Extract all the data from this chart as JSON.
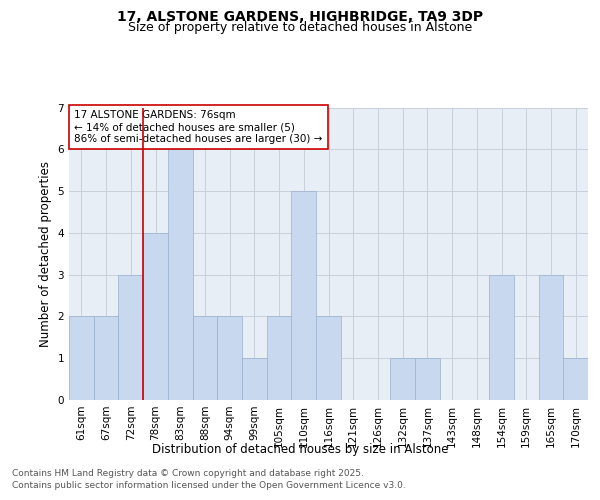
{
  "title_line1": "17, ALSTONE GARDENS, HIGHBRIDGE, TA9 3DP",
  "title_line2": "Size of property relative to detached houses in Alstone",
  "xlabel": "Distribution of detached houses by size in Alstone",
  "ylabel": "Number of detached properties",
  "categories": [
    "61sqm",
    "67sqm",
    "72sqm",
    "78sqm",
    "83sqm",
    "88sqm",
    "94sqm",
    "99sqm",
    "105sqm",
    "110sqm",
    "116sqm",
    "121sqm",
    "126sqm",
    "132sqm",
    "137sqm",
    "143sqm",
    "148sqm",
    "154sqm",
    "159sqm",
    "165sqm",
    "170sqm"
  ],
  "values": [
    2,
    2,
    3,
    4,
    6,
    2,
    2,
    1,
    2,
    5,
    2,
    0,
    0,
    1,
    1,
    0,
    0,
    3,
    0,
    3,
    1
  ],
  "bar_color": "#c8d8ee",
  "bar_edgecolor": "#9ab0cc",
  "redline_color": "#cc0000",
  "annotation_text": "17 ALSTONE GARDENS: 76sqm\n← 14% of detached houses are smaller (5)\n86% of semi-detached houses are larger (30) →",
  "annotation_box_facecolor": "#ffffff",
  "annotation_box_edgecolor": "#cc0000",
  "ylim": [
    0,
    7
  ],
  "yticks": [
    0,
    1,
    2,
    3,
    4,
    5,
    6,
    7
  ],
  "grid_color": "#c8d0dc",
  "background_color": "#e8eef6",
  "footer_line1": "Contains HM Land Registry data © Crown copyright and database right 2025.",
  "footer_line2": "Contains public sector information licensed under the Open Government Licence v3.0.",
  "title_fontsize": 10,
  "subtitle_fontsize": 9,
  "axis_label_fontsize": 8.5,
  "tick_fontsize": 7.5,
  "annotation_fontsize": 7.5,
  "footer_fontsize": 6.5
}
